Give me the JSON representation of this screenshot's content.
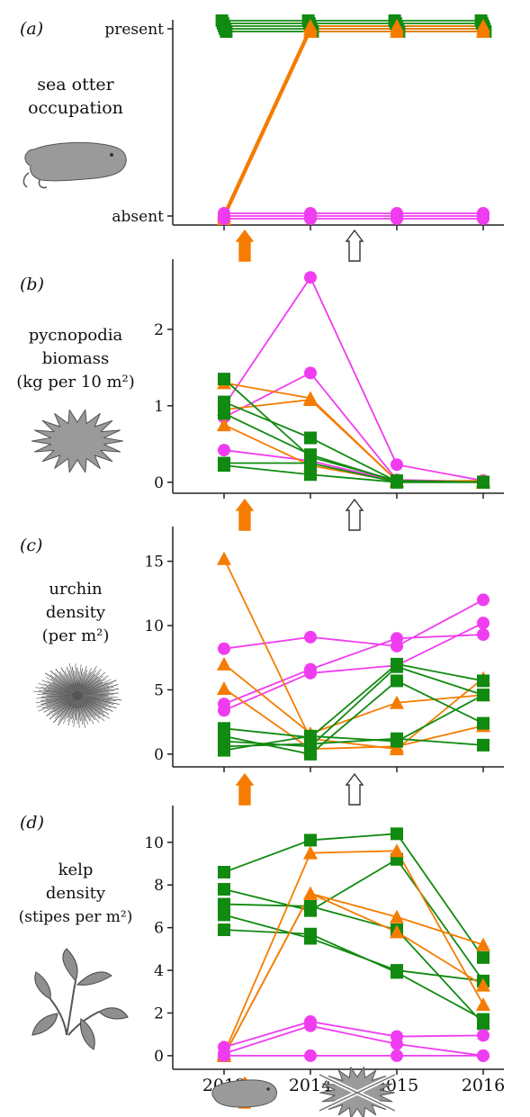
{
  "colors": {
    "green": "#108a10",
    "orange": "#f57c00",
    "magenta": "#f03cf0",
    "silhouette": "#9a9a9a",
    "axis": "#222222"
  },
  "x_tick_labels": [
    "2013",
    "2014",
    "2015",
    "2016"
  ],
  "event_markers": {
    "otter_arrival": {
      "after_year": 2013,
      "color": "#f57c00",
      "icon": "up-arrow-filled"
    },
    "pycnopodia_decline": {
      "after_year": 2014,
      "color": "#ffffff",
      "icon": "up-arrow-outline"
    }
  },
  "bottom_icons": [
    "sea-otter-icon",
    "crossed-out-sea-star-icon"
  ],
  "chart_data": [
    {
      "panel": "a",
      "panel_label": "(a)",
      "type": "line",
      "title_lines": [
        "sea otter",
        "occupation"
      ],
      "icon": "sea-otter-icon",
      "x": [
        2013,
        2014,
        2015,
        2016
      ],
      "ylim": [
        0,
        1
      ],
      "yticks": [
        {
          "value": 0,
          "label": "absent"
        },
        {
          "value": 1,
          "label": "present"
        }
      ],
      "series": [
        {
          "group": "green",
          "marker": "square",
          "values": [
            1,
            1,
            1,
            1
          ]
        },
        {
          "group": "green",
          "marker": "square",
          "values": [
            1,
            1,
            1,
            1
          ]
        },
        {
          "group": "green",
          "marker": "square",
          "values": [
            1,
            1,
            1,
            1
          ]
        },
        {
          "group": "green",
          "marker": "square",
          "values": [
            1,
            1,
            1,
            1
          ]
        },
        {
          "group": "green",
          "marker": "square",
          "values": [
            1,
            1,
            1,
            1
          ]
        },
        {
          "group": "orange",
          "marker": "triangle",
          "values": [
            0,
            1,
            1,
            1
          ]
        },
        {
          "group": "orange",
          "marker": "triangle",
          "values": [
            0,
            1,
            1,
            1
          ]
        },
        {
          "group": "orange",
          "marker": "triangle",
          "values": [
            0,
            1,
            1,
            1
          ]
        },
        {
          "group": "magenta",
          "marker": "circle",
          "values": [
            0,
            0,
            0,
            0
          ]
        },
        {
          "group": "magenta",
          "marker": "circle",
          "values": [
            0,
            0,
            0,
            0
          ]
        },
        {
          "group": "magenta",
          "marker": "circle",
          "values": [
            0,
            0,
            0,
            0
          ]
        }
      ]
    },
    {
      "panel": "b",
      "panel_label": "(b)",
      "type": "line",
      "title_lines": [
        "pycnopodia",
        "biomass",
        "(kg per 10 m²)"
      ],
      "icon": "sea-star-icon",
      "x": [
        2013,
        2014,
        2015,
        2016
      ],
      "ylim": [
        -0.05,
        2.8
      ],
      "yticks": [
        {
          "value": 0,
          "label": "0"
        },
        {
          "value": 1,
          "label": "1"
        },
        {
          "value": 2,
          "label": "2"
        }
      ],
      "series": [
        {
          "group": "magenta",
          "marker": "circle",
          "values": [
            1.0,
            2.68,
            0.23,
            0.02
          ]
        },
        {
          "group": "magenta",
          "marker": "circle",
          "values": [
            0.85,
            1.43,
            0.03,
            0.01
          ]
        },
        {
          "group": "magenta",
          "marker": "circle",
          "values": [
            0.42,
            0.28,
            0.01,
            0.0
          ]
        },
        {
          "group": "orange",
          "marker": "triangle",
          "values": [
            1.3,
            1.1,
            0.02,
            0.0
          ]
        },
        {
          "group": "orange",
          "marker": "triangle",
          "values": [
            0.95,
            1.08,
            0.02,
            0.0
          ]
        },
        {
          "group": "orange",
          "marker": "triangle",
          "values": [
            0.75,
            0.22,
            0.01,
            0.02
          ]
        },
        {
          "group": "green",
          "marker": "square",
          "values": [
            1.35,
            0.33,
            0.02,
            0.0
          ]
        },
        {
          "group": "green",
          "marker": "square",
          "values": [
            1.05,
            0.58,
            0.01,
            0.0
          ]
        },
        {
          "group": "green",
          "marker": "square",
          "values": [
            0.9,
            0.36,
            0.01,
            0.0
          ]
        },
        {
          "group": "green",
          "marker": "square",
          "values": [
            0.25,
            0.25,
            0.0,
            0.0
          ]
        },
        {
          "group": "green",
          "marker": "square",
          "values": [
            0.22,
            0.1,
            0.0,
            0.0
          ]
        }
      ]
    },
    {
      "panel": "c",
      "panel_label": "(c)",
      "type": "line",
      "title_lines": [
        "urchin",
        "density",
        "(per m²)"
      ],
      "icon": "sea-urchin-icon",
      "x": [
        2013,
        2014,
        2015,
        2016
      ],
      "ylim": [
        -0.5,
        17
      ],
      "yticks": [
        {
          "value": 0,
          "label": "0"
        },
        {
          "value": 5,
          "label": "5"
        },
        {
          "value": 10,
          "label": "10"
        },
        {
          "value": 15,
          "label": "15"
        }
      ],
      "series": [
        {
          "group": "magenta",
          "marker": "circle",
          "values": [
            8.2,
            9.1,
            8.4,
            12.0
          ]
        },
        {
          "group": "magenta",
          "marker": "circle",
          "values": [
            3.9,
            6.6,
            9.0,
            9.3
          ]
        },
        {
          "group": "magenta",
          "marker": "circle",
          "values": [
            3.4,
            6.3,
            6.9,
            10.2
          ]
        },
        {
          "group": "orange",
          "marker": "triangle",
          "values": [
            15.2,
            1.2,
            0.4,
            5.9
          ]
        },
        {
          "group": "orange",
          "marker": "triangle",
          "values": [
            7.0,
            1.6,
            4.0,
            4.6
          ]
        },
        {
          "group": "orange",
          "marker": "triangle",
          "values": [
            5.1,
            0.4,
            0.6,
            2.2
          ]
        },
        {
          "group": "green",
          "marker": "square",
          "values": [
            2.0,
            1.3,
            7.0,
            5.7
          ]
        },
        {
          "group": "green",
          "marker": "square",
          "values": [
            1.4,
            0.0,
            5.7,
            2.4
          ]
        },
        {
          "group": "green",
          "marker": "square",
          "values": [
            1.0,
            0.6,
            6.8,
            4.6
          ]
        },
        {
          "group": "green",
          "marker": "square",
          "values": [
            0.6,
            0.8,
            1.2,
            0.7
          ]
        },
        {
          "group": "green",
          "marker": "square",
          "values": [
            0.3,
            1.4,
            1.0,
            4.6
          ]
        }
      ]
    },
    {
      "panel": "d",
      "panel_label": "(d)",
      "type": "line",
      "title_lines": [
        "kelp",
        "density",
        "(stipes per m²)"
      ],
      "icon": "kelp-icon",
      "x": [
        2013,
        2014,
        2015,
        2016
      ],
      "ylim": [
        -0.3,
        11.3
      ],
      "yticks": [
        {
          "value": 0,
          "label": "0"
        },
        {
          "value": 2,
          "label": "2"
        },
        {
          "value": 4,
          "label": "4"
        },
        {
          "value": 6,
          "label": "6"
        },
        {
          "value": 8,
          "label": "8"
        },
        {
          "value": 10,
          "label": "10"
        }
      ],
      "series": [
        {
          "group": "green",
          "marker": "square",
          "values": [
            8.6,
            10.1,
            10.4,
            4.6
          ]
        },
        {
          "group": "green",
          "marker": "square",
          "values": [
            7.8,
            6.8,
            9.2,
            3.5
          ]
        },
        {
          "group": "green",
          "marker": "square",
          "values": [
            7.1,
            7.0,
            5.9,
            1.5
          ]
        },
        {
          "group": "green",
          "marker": "square",
          "values": [
            6.6,
            5.5,
            4.0,
            3.5
          ]
        },
        {
          "group": "green",
          "marker": "square",
          "values": [
            5.9,
            5.7,
            3.9,
            1.7
          ]
        },
        {
          "group": "orange",
          "marker": "triangle",
          "values": [
            0.1,
            9.5,
            9.6,
            2.4
          ]
        },
        {
          "group": "orange",
          "marker": "triangle",
          "values": [
            0.0,
            7.6,
            6.5,
            5.2
          ]
        },
        {
          "group": "orange",
          "marker": "triangle",
          "values": [
            0.0,
            7.6,
            5.8,
            3.3
          ]
        },
        {
          "group": "magenta",
          "marker": "circle",
          "values": [
            0.4,
            1.6,
            0.9,
            0.95
          ]
        },
        {
          "group": "magenta",
          "marker": "circle",
          "values": [
            0.1,
            1.4,
            0.55,
            0.0
          ]
        },
        {
          "group": "magenta",
          "marker": "circle",
          "values": [
            0.0,
            0.0,
            0.0,
            0.0
          ]
        }
      ]
    }
  ]
}
